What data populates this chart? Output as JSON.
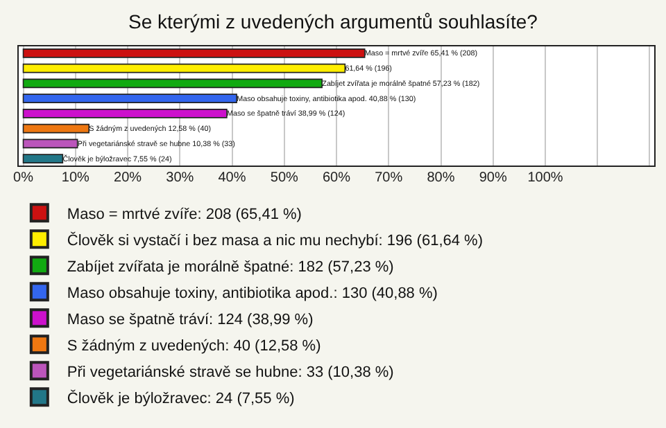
{
  "chart_data": {
    "type": "bar",
    "orientation": "horizontal",
    "title": "Se kterými z uvedených argumentů souhlasíte?",
    "categories": [
      null,
      null,
      null,
      null,
      null,
      null,
      null,
      null
    ],
    "series": [
      {
        "name": "Maso = mrtvé zvíře: 208 (65,41 %)",
        "color": "#cc1111",
        "values": [
          65.41,
          null,
          null,
          null,
          null,
          null,
          null,
          null
        ],
        "value_labels": [
          "Maso = mrtvé zvíře 65,41 % (208)",
          null,
          null,
          null,
          null,
          null,
          null,
          null
        ]
      },
      {
        "name": "Člověk si vystačí i bez masa a nic mu nechybí: 196 (61,64 %)",
        "color": "#ffee00",
        "values": [
          null,
          61.64,
          null,
          null,
          null,
          null,
          null,
          null
        ],
        "value_labels": [
          null,
          "61,64 % (196)",
          null,
          null,
          null,
          null,
          null,
          null
        ]
      },
      {
        "name": "Zabíjet zvířata je morálně špatné: 182 (57,23 %)",
        "color": "#11aa11",
        "values": [
          null,
          null,
          57.23,
          null,
          null,
          null,
          null,
          null
        ],
        "value_labels": [
          null,
          null,
          "Zabíjet zvířata je morálně špatné 57,23 % (182)",
          null,
          null,
          null,
          null,
          null
        ]
      },
      {
        "name": "Maso obsahuje toxiny, antibiotika apod.: 130 (40,88 %)",
        "color": "#3366ee",
        "values": [
          null,
          null,
          null,
          40.88,
          null,
          null,
          null,
          null
        ],
        "value_labels": [
          null,
          null,
          null,
          "Maso obsahuje toxiny, antibiotika apod. 40,88 % (130)",
          null,
          null,
          null,
          null
        ]
      },
      {
        "name": "Maso se špatně tráví: 124 (38,99 %)",
        "color": "#cc11cc",
        "values": [
          null,
          null,
          null,
          null,
          38.99,
          null,
          null,
          null
        ],
        "value_labels": [
          null,
          null,
          null,
          null,
          "Maso se špatně tráví 38,99 % (124)",
          null,
          null,
          null
        ]
      },
      {
        "name": "S žádným z uvedených: 40 (12,58 %)",
        "color": "#ee7711",
        "values": [
          null,
          null,
          null,
          null,
          null,
          12.58,
          null,
          null
        ],
        "value_labels": [
          null,
          null,
          null,
          null,
          null,
          "S žádným z uvedených 12,58 % (40)",
          null,
          null
        ]
      },
      {
        "name": "Při vegetariánské stravě se hubne: 33 (10,38 %)",
        "color": "#bb55bb",
        "values": [
          null,
          null,
          null,
          null,
          null,
          null,
          10.38,
          null
        ],
        "value_labels": [
          null,
          null,
          null,
          null,
          null,
          null,
          "Při vegetariánské stravě se hubne 10,38 % (33)",
          null
        ]
      },
      {
        "name": "Člověk je býložravec: 24 (7,55 %)",
        "color": "#227788",
        "values": [
          null,
          null,
          null,
          null,
          null,
          null,
          null,
          7.55
        ],
        "value_labels": [
          null,
          null,
          null,
          null,
          null,
          null,
          null,
          "Člověk je býložravec 7,55 % (24)"
        ]
      }
    ],
    "xlim": [
      -1,
      121
    ],
    "xticks": [
      {
        "value": 0,
        "label": "0%"
      },
      {
        "value": 10,
        "label": "10%"
      },
      {
        "value": 20,
        "label": "20%"
      },
      {
        "value": 30,
        "label": "30%"
      },
      {
        "value": 40,
        "label": "40%"
      },
      {
        "value": 50,
        "label": "50%"
      },
      {
        "value": 60,
        "label": "60%"
      },
      {
        "value": 70,
        "label": "70%"
      },
      {
        "value": 80,
        "label": "80%"
      },
      {
        "value": 90,
        "label": "90%"
      },
      {
        "value": 100,
        "label": "100%"
      },
      {
        "value": 110,
        "label": null
      },
      {
        "value": 120,
        "label": null
      }
    ],
    "grid": "x",
    "legend": "bottom",
    "tick_labels": "x"
  }
}
